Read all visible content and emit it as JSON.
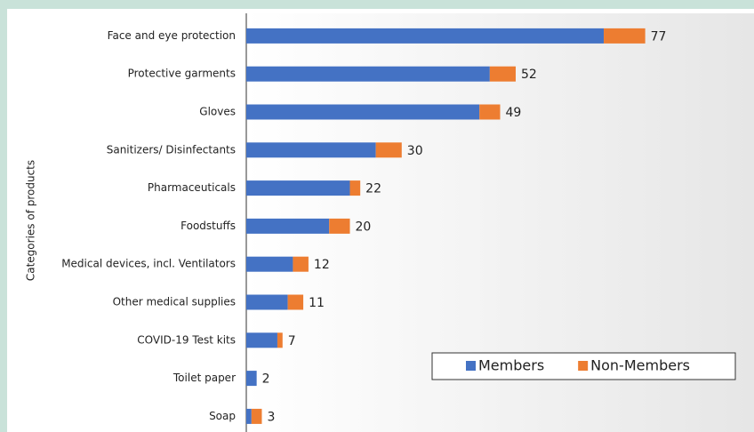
{
  "chart_data": {
    "type": "stacked_barh",
    "y_axis_label": "Categories of products",
    "categories": [
      "Face and eye protection",
      "Protective garments",
      "Gloves",
      "Sanitizers/ Disinfectants",
      "Pharmaceuticals",
      "Foodstuffs",
      "Medical devices, incl. Ventilators",
      "Other medical supplies",
      "COVID-19 Test kits",
      "Toilet paper",
      "Soap"
    ],
    "series": [
      {
        "name": "Members",
        "color": "#4472c4",
        "values": [
          69,
          47,
          45,
          25,
          20,
          16,
          9,
          8,
          6,
          2,
          1
        ]
      },
      {
        "name": "Non-Members",
        "color": "#ed7d31",
        "values": [
          8,
          5,
          4,
          5,
          2,
          4,
          3,
          3,
          1,
          0,
          2
        ]
      }
    ],
    "total_labels": [
      77,
      52,
      49,
      30,
      22,
      20,
      12,
      11,
      7,
      2,
      3
    ],
    "xlim": [
      0,
      98
    ],
    "legend": "lower right"
  }
}
